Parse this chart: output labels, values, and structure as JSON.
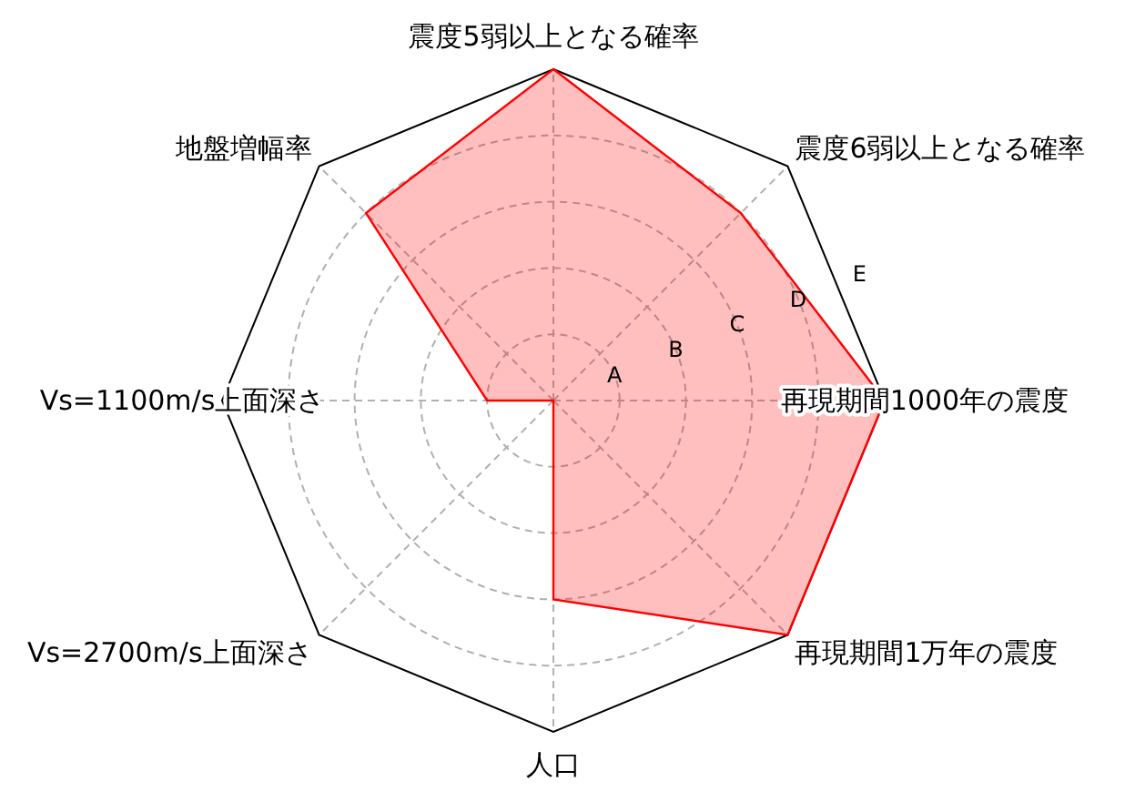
{
  "chart_data": {
    "type": "radar",
    "categories": [
      "震度5弱以上となる確率",
      "震度6弱以上となる確率",
      "再現期間1000年の震度",
      "再現期間1万年の震度",
      "人口",
      "Vs=2700m/s上面深さ",
      "Vs=1100m/s上面深さ",
      "地盤増幅率"
    ],
    "series": [
      {
        "color": "#ff0000",
        "values": [
          5,
          4,
          5,
          5,
          3,
          0,
          1,
          4
        ]
      }
    ],
    "ylim": [
      0,
      5
    ],
    "yticks": [
      {
        "value": 1,
        "label": "A"
      },
      {
        "value": 2,
        "label": "B"
      },
      {
        "value": 3,
        "label": "C"
      },
      {
        "value": 4,
        "label": "D"
      },
      {
        "value": 5,
        "label": "E"
      }
    ],
    "grid": true
  }
}
